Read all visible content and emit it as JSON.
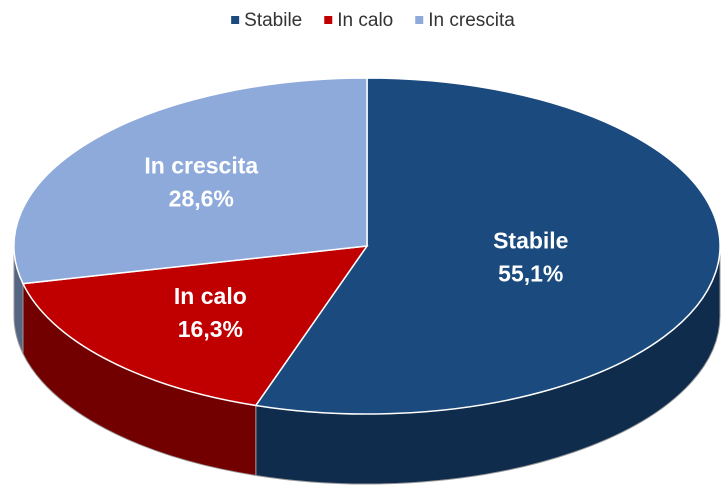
{
  "chart_data": {
    "type": "pie",
    "categories": [
      "Stabile",
      "In calo",
      "In crescita"
    ],
    "values": [
      55.1,
      16.3,
      28.6
    ],
    "value_labels": [
      "55,1%",
      "16,3%",
      "28,6%"
    ],
    "colors": [
      "#1a4a7e",
      "#c00000",
      "#8eaadb"
    ],
    "legend": "top"
  }
}
